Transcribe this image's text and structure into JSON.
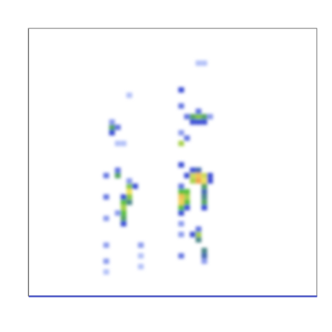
{
  "chart_data": {
    "type": "heatmap",
    "tick_labels": false,
    "xlim": [
      0,
      100
    ],
    "ylim": [
      0,
      100
    ],
    "zlim": [
      0,
      1
    ],
    "x_step": 2,
    "y_step": 2,
    "cells": [
      [
        26,
        44,
        0.25
      ],
      [
        26,
        36,
        0.25
      ],
      [
        26,
        28,
        0.2
      ],
      [
        26,
        18,
        0.2
      ],
      [
        26,
        12,
        0.2
      ],
      [
        26,
        8,
        0.15
      ],
      [
        28,
        62,
        0.45
      ],
      [
        28,
        60,
        0.3
      ],
      [
        28,
        64,
        0.2
      ],
      [
        30,
        62,
        0.25
      ],
      [
        30,
        44,
        0.45
      ],
      [
        30,
        46,
        0.25
      ],
      [
        34,
        40,
        0.55
      ],
      [
        34,
        38,
        0.7
      ],
      [
        34,
        36,
        0.55
      ],
      [
        32,
        36,
        0.3
      ],
      [
        34,
        34,
        0.4
      ],
      [
        32,
        34,
        0.5
      ],
      [
        32,
        32,
        0.6
      ],
      [
        32,
        30,
        0.5
      ],
      [
        32,
        28,
        0.45
      ],
      [
        32,
        26,
        0.3
      ],
      [
        36,
        40,
        0.3
      ],
      [
        34,
        42,
        0.2
      ],
      [
        30,
        30,
        0.2
      ],
      [
        34,
        74,
        0.15
      ],
      [
        30,
        56,
        0.15
      ],
      [
        32,
        56,
        0.15
      ],
      [
        38,
        18,
        0.2
      ],
      [
        38,
        14,
        0.15
      ],
      [
        38,
        10,
        0.15
      ],
      [
        58,
        86,
        0.15
      ],
      [
        60,
        86,
        0.15
      ],
      [
        52,
        76,
        0.3
      ],
      [
        52,
        70,
        0.25
      ],
      [
        56,
        66,
        0.45
      ],
      [
        58,
        66,
        0.55
      ],
      [
        60,
        66,
        0.45
      ],
      [
        56,
        64,
        0.3
      ],
      [
        58,
        64,
        0.3
      ],
      [
        60,
        64,
        0.3
      ],
      [
        54,
        66,
        0.25
      ],
      [
        58,
        68,
        0.25
      ],
      [
        62,
        66,
        0.2
      ],
      [
        54,
        58,
        0.25
      ],
      [
        52,
        60,
        0.2
      ],
      [
        52,
        56,
        0.6
      ],
      [
        56,
        44,
        0.65
      ],
      [
        58,
        44,
        0.8
      ],
      [
        60,
        44,
        0.65
      ],
      [
        58,
        42,
        0.9
      ],
      [
        56,
        42,
        0.6
      ],
      [
        60,
        42,
        0.7
      ],
      [
        62,
        44,
        0.3
      ],
      [
        58,
        46,
        0.35
      ],
      [
        56,
        46,
        0.3
      ],
      [
        54,
        44,
        0.3
      ],
      [
        60,
        40,
        0.45
      ],
      [
        62,
        42,
        0.3
      ],
      [
        52,
        40,
        0.25
      ],
      [
        52,
        38,
        0.5
      ],
      [
        52,
        36,
        0.8
      ],
      [
        52,
        34,
        0.75
      ],
      [
        52,
        32,
        0.5
      ],
      [
        52,
        30,
        0.3
      ],
      [
        52,
        26,
        0.2
      ],
      [
        52,
        22,
        0.2
      ],
      [
        52,
        48,
        0.3
      ],
      [
        54,
        38,
        0.5
      ],
      [
        54,
        36,
        0.6
      ],
      [
        54,
        34,
        0.5
      ],
      [
        54,
        32,
        0.3
      ],
      [
        60,
        38,
        0.35
      ],
      [
        60,
        36,
        0.4
      ],
      [
        60,
        34,
        0.45
      ],
      [
        60,
        32,
        0.3
      ],
      [
        58,
        22,
        0.6
      ],
      [
        58,
        20,
        0.4
      ],
      [
        56,
        22,
        0.3
      ],
      [
        58,
        24,
        0.25
      ],
      [
        60,
        16,
        0.4
      ],
      [
        60,
        14,
        0.35
      ],
      [
        60,
        12,
        0.2
      ],
      [
        52,
        14,
        0.25
      ]
    ]
  }
}
